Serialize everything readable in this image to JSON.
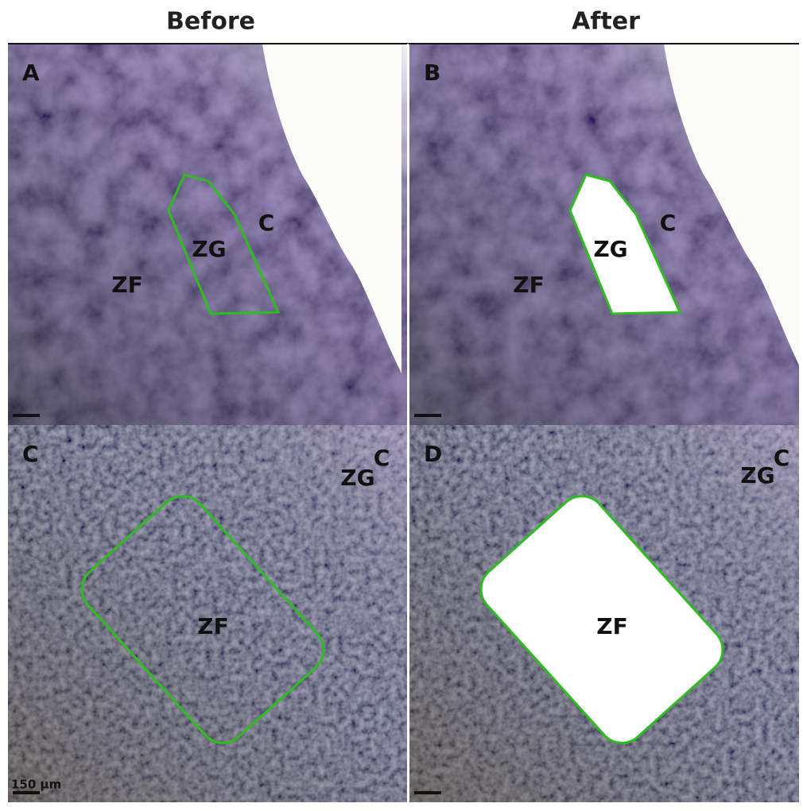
{
  "headers": [
    "Before",
    "After"
  ],
  "panels": [
    {
      "letter": "A",
      "labels": [
        "ZG",
        "C",
        "ZF"
      ]
    },
    {
      "letter": "B",
      "labels": [
        "ZG",
        "C",
        "ZF"
      ]
    },
    {
      "letter": "C",
      "labels": [
        "ZF",
        "ZG",
        "C"
      ]
    },
    {
      "letter": "D",
      "labels": [
        "ZF",
        "ZG",
        "C"
      ]
    }
  ],
  "scale_bar": "150 µm"
}
